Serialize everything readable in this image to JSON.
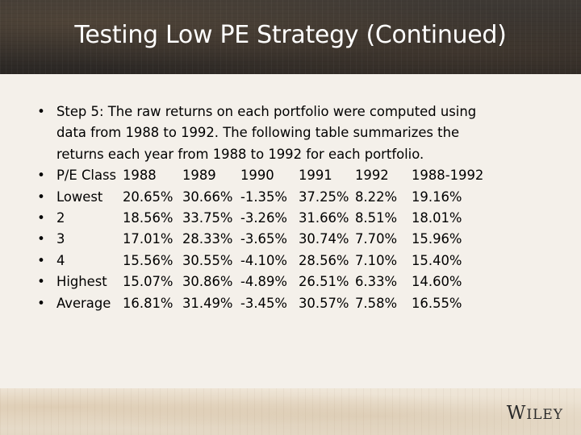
{
  "slide": {
    "title": "Testing Low PE Strategy (Continued)"
  },
  "intro": {
    "bullet": "•",
    "lines": [
      "Step 5: The raw returns on each portfolio were computed using",
      "data from 1988 to 1992. The following table summarizes the",
      "returns each year from 1988 to 1992 for each portfolio."
    ]
  },
  "table": {
    "header": [
      "P/E Class",
      "1988",
      "1989",
      "1990",
      "1991",
      "1992",
      "1988-1992"
    ],
    "rows": [
      [
        "Lowest",
        "20.65%",
        "30.66%",
        "-1.35%",
        "37.25%",
        "8.22%",
        "19.16%"
      ],
      [
        "2",
        "18.56%",
        "33.75%",
        "-3.26%",
        "31.66%",
        "8.51%",
        "18.01%"
      ],
      [
        "3",
        "17.01%",
        "28.33%",
        "-3.65%",
        "30.74%",
        "7.70%",
        "15.96%"
      ],
      [
        "4",
        "15.56%",
        "30.55%",
        "-4.10%",
        "28.56%",
        "7.10%",
        "15.40%"
      ],
      [
        "Highest",
        "15.07%",
        "30.86%",
        "-4.89%",
        "26.51%",
        "6.33%",
        "14.60%"
      ],
      [
        "Average",
        "16.81%",
        "31.49%",
        "-3.45%",
        "30.57%",
        "7.58%",
        "16.55%"
      ]
    ]
  },
  "footer": {
    "logo": "WILEY",
    "logo_initial": "W",
    "logo_rest": "ILEY"
  }
}
